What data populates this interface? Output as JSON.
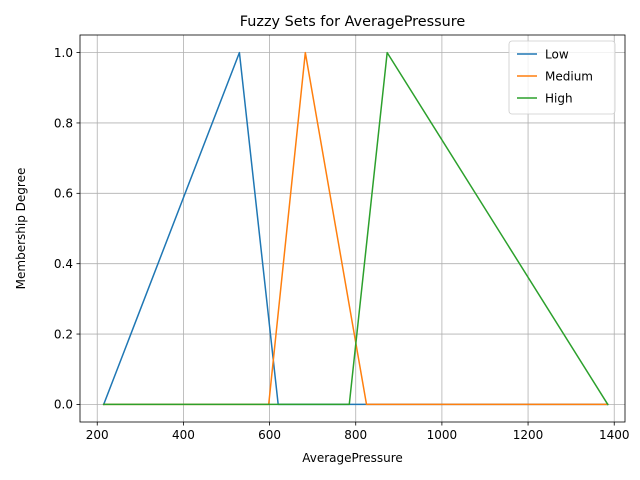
{
  "chart_data": {
    "type": "line",
    "title": "Fuzzy Sets for AveragePressure",
    "xlabel": "AveragePressure",
    "ylabel": "Membership Degree",
    "xlim": [
      160,
      1425
    ],
    "ylim": [
      -0.05,
      1.05
    ],
    "xticks": [
      200,
      400,
      600,
      800,
      1000,
      1200,
      1400
    ],
    "yticks": [
      0.0,
      0.2,
      0.4,
      0.6,
      0.8,
      1.0
    ],
    "ytick_labels": [
      "0.0",
      "0.2",
      "0.4",
      "0.6",
      "0.8",
      "1.0"
    ],
    "grid": true,
    "legend_position": "top-right",
    "series": [
      {
        "name": "Low",
        "color": "#1f77b4",
        "x": [
          215,
          215,
          530,
          620,
          1385
        ],
        "y": [
          0,
          0,
          1,
          0,
          0
        ]
      },
      {
        "name": "Medium",
        "color": "#ff7f0e",
        "x": [
          215,
          598,
          683,
          825,
          1385
        ],
        "y": [
          0,
          0,
          1,
          0,
          0
        ]
      },
      {
        "name": "High",
        "color": "#2ca02c",
        "x": [
          215,
          785,
          873,
          1385,
          1385
        ],
        "y": [
          0,
          0,
          1,
          0,
          0
        ]
      }
    ]
  }
}
